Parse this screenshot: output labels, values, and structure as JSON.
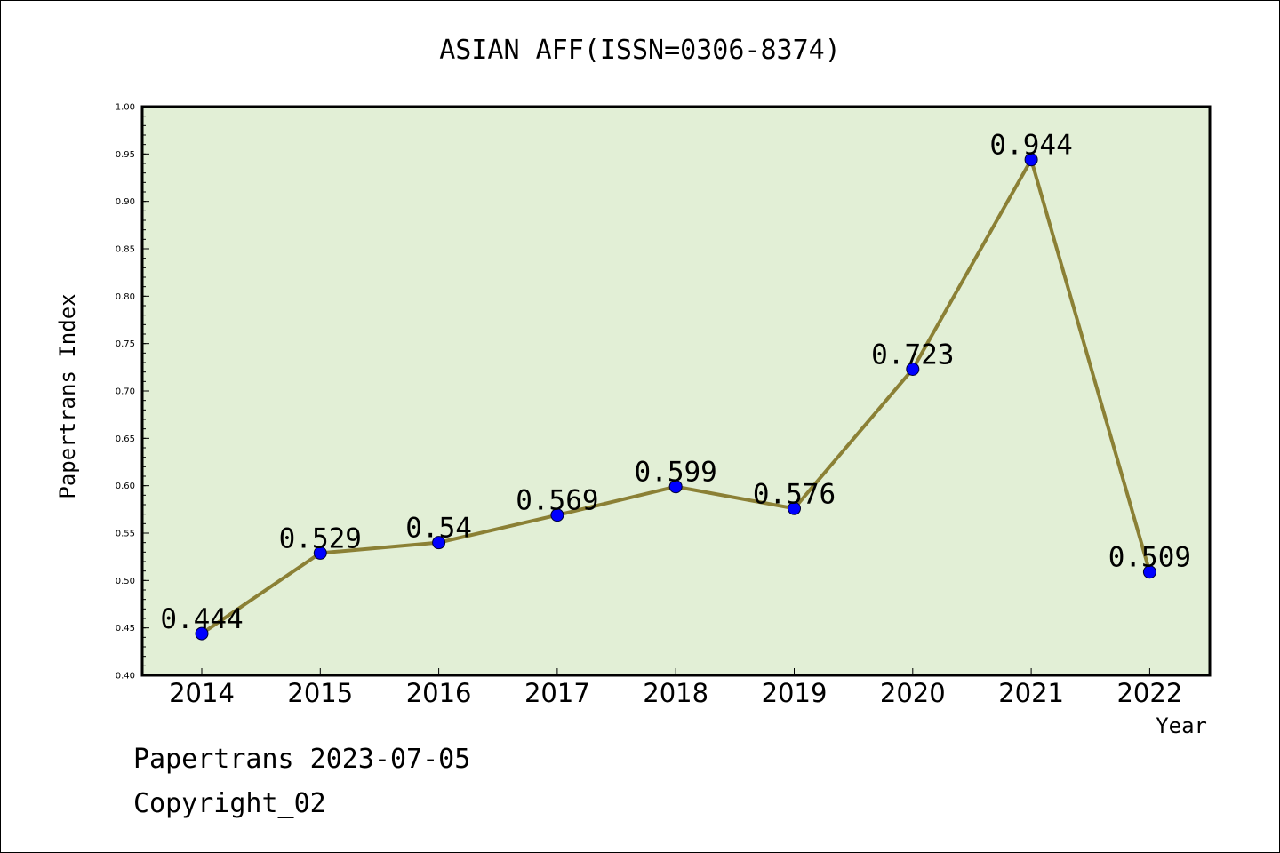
{
  "chart_data": {
    "type": "line",
    "title": "ASIAN AFF(ISSN=0306-8374)",
    "xlabel": "Year",
    "ylabel": "Papertrans Index",
    "categories": [
      "2014",
      "2015",
      "2016",
      "2017",
      "2018",
      "2019",
      "2020",
      "2021",
      "2022"
    ],
    "series": [
      {
        "values": [
          0.444,
          0.529,
          0.54,
          0.569,
          0.599,
          0.576,
          0.723,
          0.944,
          0.509
        ],
        "labels": [
          "0.444",
          "0.529",
          "0.54",
          "0.569",
          "0.599",
          "0.576",
          "0.723",
          "0.944",
          "0.509"
        ]
      }
    ],
    "ylim": [
      0.4,
      1.0
    ],
    "yticks": [
      "0.40",
      "0.45",
      "0.50",
      "0.55",
      "0.60",
      "0.65",
      "0.70",
      "0.75",
      "0.80",
      "0.85",
      "0.90",
      "0.95",
      "1.00"
    ],
    "grid": false,
    "colors": {
      "plot_background": "#e2efd6",
      "line": "#8b8035",
      "marker": "#0000ff"
    }
  },
  "footer": {
    "line1": "Papertrans 2023-07-05",
    "line2": "Copyright_02"
  }
}
